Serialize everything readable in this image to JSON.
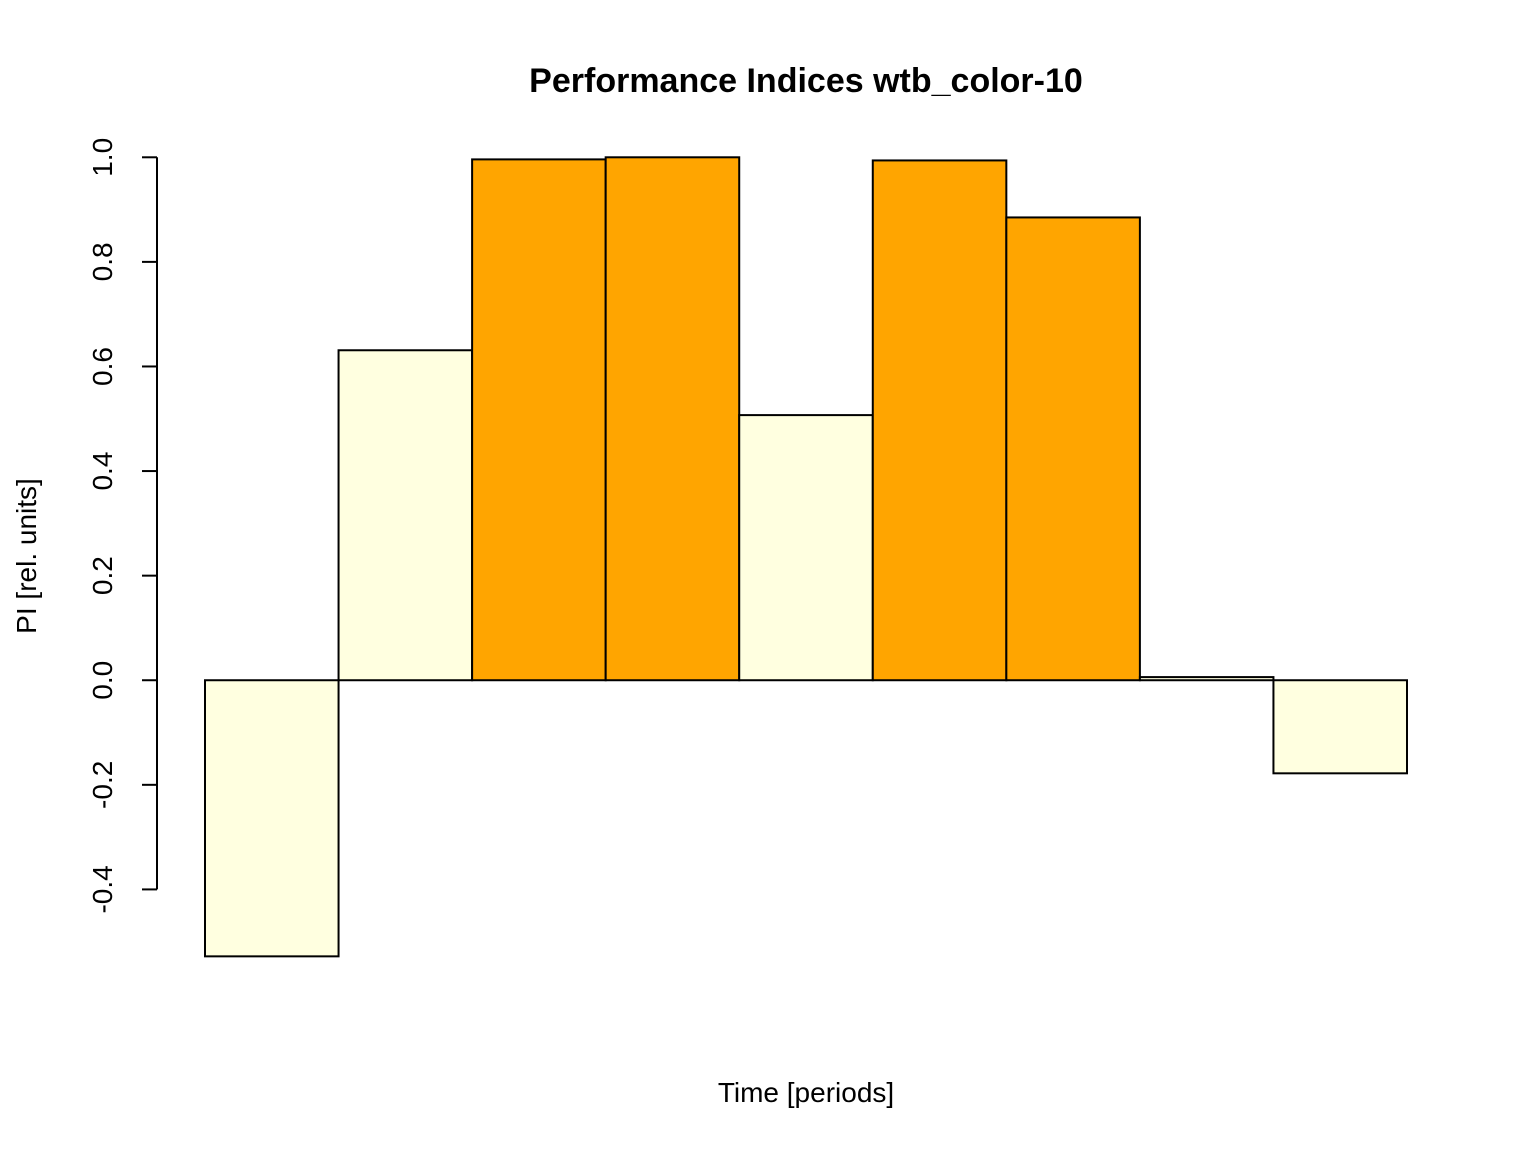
{
  "chart_data": {
    "type": "bar",
    "title": "Performance Indices wtb_color-10",
    "x_label": "Time [periods]",
    "y_label": "PI [rel. units]",
    "values": [
      -0.528,
      0.631,
      0.996,
      1.0,
      0.507,
      0.994,
      0.885,
      0.006,
      -0.178
    ],
    "colors": [
      "#ffffe0",
      "#ffffe0",
      "#ffa500",
      "#ffa500",
      "#ffffe0",
      "#ffa500",
      "#ffa500",
      "#ffffe0",
      "#ffffe0"
    ],
    "ylim": [
      -0.6,
      1.1
    ],
    "yticks": [
      {
        "value": -0.4,
        "label": "-0.4"
      },
      {
        "value": -0.2,
        "label": "-0.2"
      },
      {
        "value": 0,
        "label": "0.0"
      },
      {
        "value": 0.2,
        "label": "0.2"
      },
      {
        "value": 0.4,
        "label": "0.4"
      },
      {
        "value": 0.6,
        "label": "0.6"
      },
      {
        "value": 0.8,
        "label": "0.8"
      },
      {
        "value": 1,
        "label": "1.0"
      }
    ]
  }
}
